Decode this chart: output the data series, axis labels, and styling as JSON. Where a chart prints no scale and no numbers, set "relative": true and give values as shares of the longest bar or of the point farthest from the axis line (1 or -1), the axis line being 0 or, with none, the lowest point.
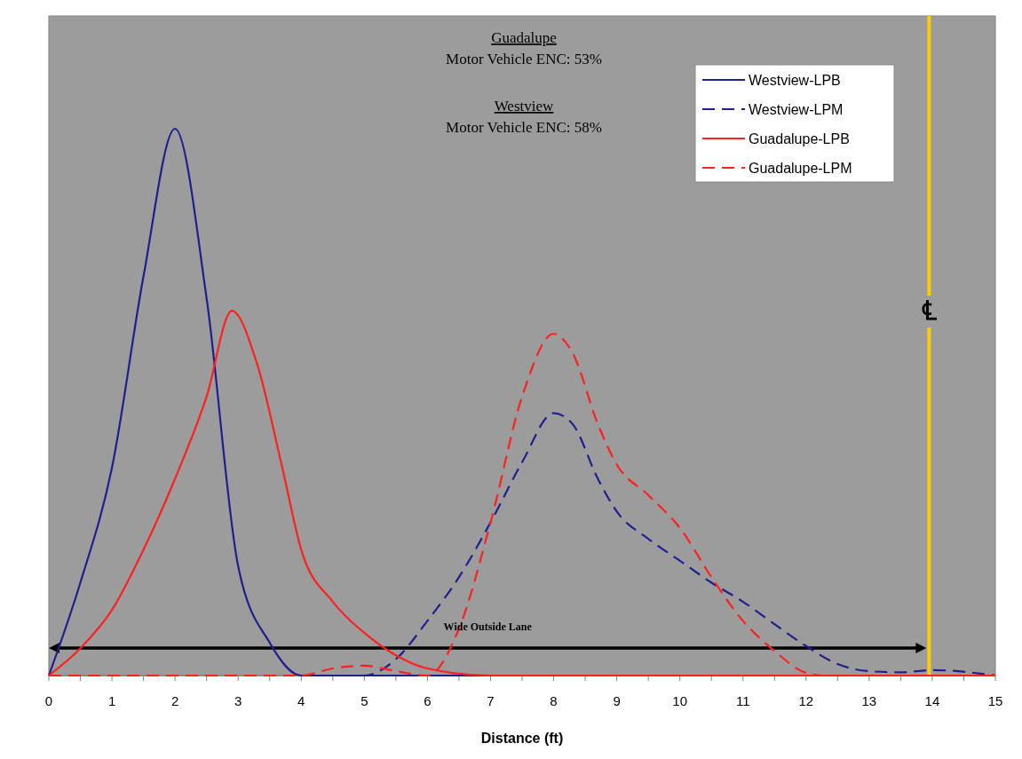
{
  "chart_data": {
    "type": "line",
    "relative": true,
    "xlabel": "Distance (ft)",
    "xlim": [
      0,
      15
    ],
    "xticks": [
      0,
      {
        "value": 0.5,
        "label": null
      },
      1,
      {
        "value": 1.5,
        "label": null
      },
      2,
      {
        "value": 2.5,
        "label": null
      },
      3,
      {
        "value": 3.5,
        "label": null
      },
      4,
      {
        "value": 4.5,
        "label": null
      },
      5,
      {
        "value": 5.5,
        "label": null
      },
      6,
      {
        "value": 6.5,
        "label": null
      },
      7,
      {
        "value": 7.5,
        "label": null
      },
      8,
      {
        "value": 8.5,
        "label": null
      },
      9,
      {
        "value": 9.5,
        "label": null
      },
      10,
      {
        "value": 10.5,
        "label": null
      },
      11,
      {
        "value": 11.5,
        "label": null
      },
      12,
      {
        "value": 12.5,
        "label": null
      },
      13,
      {
        "value": 13.5,
        "label": null
      },
      14,
      {
        "value": 14.5,
        "label": null
      },
      15
    ],
    "grid": false,
    "legend": "top right",
    "marker": "none",
    "series": [
      {
        "name": "Westview-LPB",
        "color": "#1f1f8f",
        "line_style": "solid",
        "x": [
          0,
          0.5,
          1,
          1.5,
          2,
          2.5,
          3,
          3.5,
          4,
          5,
          6,
          8,
          10,
          12,
          15
        ],
        "values": [
          0,
          0.17,
          0.38,
          0.73,
          1,
          0.69,
          0.2,
          0.06,
          0,
          0,
          0,
          0,
          0,
          0,
          0
        ]
      },
      {
        "name": "Westview-LPM",
        "color": "#1f1f8f",
        "line_style": "dashed",
        "x": [
          0,
          4,
          5,
          5.5,
          6,
          6.5,
          7,
          7.5,
          8,
          8.3,
          8.7,
          9,
          9.5,
          10,
          10.5,
          11,
          11.5,
          12,
          12.5,
          13,
          13.5,
          14,
          15
        ],
        "values": [
          0,
          0,
          0,
          0.03,
          0.1,
          0.18,
          0.28,
          0.39,
          0.48,
          0.46,
          0.36,
          0.3,
          0.25,
          0.21,
          0.17,
          0.135,
          0.094,
          0.054,
          0.021,
          0.008,
          0.006,
          0.01,
          0
        ]
      },
      {
        "name": "Guadalupe-LPB",
        "color": "#ff2020",
        "line_style": "solid",
        "x": [
          0,
          0.5,
          1,
          1.5,
          2,
          2.5,
          2.9,
          3.3,
          3.7,
          4,
          4.5,
          5,
          5.5,
          6,
          7,
          10,
          15
        ],
        "values": [
          0,
          0.05,
          0.12,
          0.23,
          0.36,
          0.51,
          0.667,
          0.57,
          0.38,
          0.23,
          0.135,
          0.078,
          0.037,
          0.013,
          0,
          0,
          0
        ]
      },
      {
        "name": "Guadalupe-LPM",
        "color": "#ff2020",
        "line_style": "dashed",
        "x": [
          0,
          4,
          4.5,
          5,
          5.5,
          6,
          6.5,
          7,
          7.5,
          8,
          8.3,
          8.7,
          9,
          9.5,
          10,
          10.5,
          11,
          11.5,
          12,
          12.3,
          15
        ],
        "values": [
          0,
          0,
          0.013,
          0.018,
          0.008,
          0,
          0.086,
          0.28,
          0.51,
          0.625,
          0.59,
          0.46,
          0.386,
          0.33,
          0.27,
          0.18,
          0.1,
          0.045,
          0.005,
          0,
          0
        ]
      }
    ],
    "ref_lines": [
      {
        "axis": "x",
        "value": 13.95,
        "label": "℄",
        "color": "#ffcc00"
      }
    ],
    "annotations": [
      "Guadalupe",
      "Motor Vehicle ENC: 53%",
      "Westview",
      "Motor Vehicle ENC: 58%",
      "Wide Outside Lane"
    ]
  }
}
